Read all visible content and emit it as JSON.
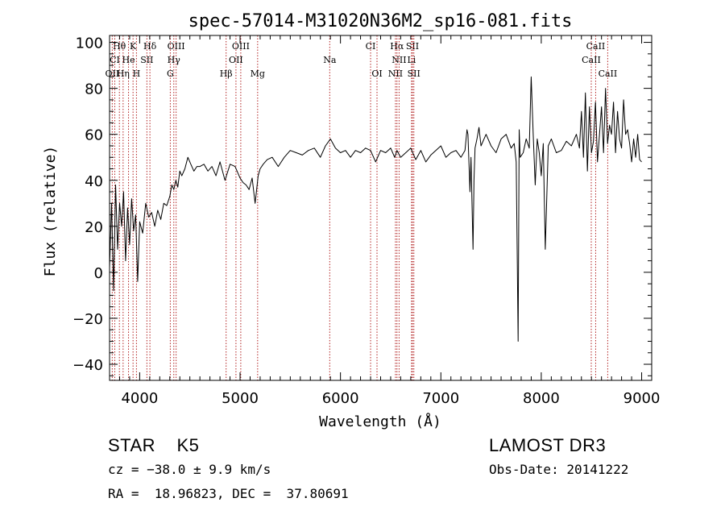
{
  "chart_data": {
    "type": "line",
    "title": "spec-57014-M31020N36M2_sp16-081.fits",
    "xlabel": "Wavelength (Å)",
    "ylabel": "Flux (relative)",
    "xlim": [
      3700,
      9100
    ],
    "ylim": [
      -47,
      103
    ],
    "xticks": [
      4000,
      5000,
      6000,
      7000,
      8000,
      9000
    ],
    "yticks": [
      -40,
      -20,
      0,
      20,
      40,
      60,
      80,
      100
    ],
    "ytick_labels": [
      "−40",
      "−20",
      "0",
      "20",
      "40",
      "60",
      "80",
      "100"
    ],
    "series": [
      {
        "name": "spectrum",
        "x": [
          3700,
          3720,
          3740,
          3760,
          3780,
          3800,
          3820,
          3840,
          3860,
          3880,
          3900,
          3920,
          3940,
          3960,
          3980,
          4000,
          4030,
          4060,
          4090,
          4120,
          4150,
          4180,
          4210,
          4240,
          4270,
          4300,
          4320,
          4340,
          4360,
          4380,
          4400,
          4420,
          4450,
          4480,
          4510,
          4540,
          4570,
          4600,
          4640,
          4680,
          4720,
          4760,
          4800,
          4850,
          4900,
          4950,
          5000,
          5030,
          5060,
          5090,
          5120,
          5150,
          5180,
          5200,
          5230,
          5270,
          5320,
          5380,
          5440,
          5500,
          5560,
          5620,
          5680,
          5740,
          5800,
          5850,
          5900,
          5950,
          6000,
          6050,
          6100,
          6150,
          6200,
          6250,
          6300,
          6350,
          6400,
          6450,
          6500,
          6540,
          6563,
          6600,
          6650,
          6700,
          6750,
          6800,
          6850,
          6900,
          6950,
          7000,
          7050,
          7100,
          7150,
          7200,
          7240,
          7260,
          7270,
          7290,
          7300,
          7320,
          7330,
          7340,
          7360,
          7380,
          7400,
          7450,
          7500,
          7550,
          7600,
          7650,
          7700,
          7730,
          7750,
          7760,
          7770,
          7780,
          7790,
          7820,
          7850,
          7880,
          7900,
          7920,
          7940,
          7960,
          7980,
          8000,
          8020,
          8040,
          8070,
          8100,
          8150,
          8200,
          8250,
          8300,
          8350,
          8380,
          8400,
          8420,
          8440,
          8460,
          8480,
          8500,
          8520,
          8540,
          8560,
          8580,
          8600,
          8620,
          8640,
          8660,
          8680,
          8700,
          8720,
          8740,
          8760,
          8780,
          8800,
          8820,
          8840,
          8860,
          8880,
          8900,
          8920,
          8940,
          8960,
          8980,
          9000
        ],
        "y": [
          2,
          30,
          -8,
          38,
          10,
          30,
          20,
          35,
          5,
          28,
          12,
          32,
          18,
          25,
          -4,
          22,
          17,
          30,
          24,
          26,
          20,
          27,
          23,
          30,
          29,
          33,
          38,
          36,
          40,
          37,
          44,
          42,
          45,
          50,
          47,
          44,
          46,
          46,
          47,
          44,
          46,
          42,
          48,
          40,
          47,
          46,
          41,
          39,
          38,
          36,
          41,
          30,
          42,
          45,
          47,
          49,
          50,
          46,
          50,
          53,
          52,
          51,
          53,
          54,
          50,
          55,
          58,
          54,
          52,
          53,
          50,
          53,
          52,
          54,
          53,
          48,
          53,
          52,
          54,
          50,
          53,
          50,
          52,
          54,
          49,
          53,
          48,
          51,
          53,
          55,
          50,
          52,
          53,
          50,
          53,
          62,
          60,
          35,
          50,
          10,
          40,
          54,
          58,
          63,
          55,
          60,
          55,
          52,
          58,
          60,
          54,
          56,
          48,
          10,
          -30,
          62,
          50,
          52,
          58,
          54,
          85,
          60,
          38,
          58,
          52,
          42,
          56,
          10,
          55,
          58,
          52,
          53,
          57,
          55,
          60,
          54,
          70,
          50,
          78,
          44,
          72,
          52,
          57,
          74,
          48,
          60,
          72,
          52,
          80,
          56,
          64,
          60,
          74,
          52,
          70,
          58,
          54,
          75,
          60,
          62,
          56,
          48,
          58,
          50,
          60,
          49,
          48
        ]
      }
    ],
    "line_markers": [
      {
        "label": "Hθ",
        "x": 3798,
        "row": 1
      },
      {
        "label": "K",
        "x": 3934,
        "row": 1
      },
      {
        "label": "Hδ",
        "x": 4102,
        "row": 1
      },
      {
        "label": "OIII",
        "x": 4363,
        "row": 1
      },
      {
        "label": "OIII",
        "x": 5007,
        "row": 1
      },
      {
        "label": "CI",
        "x": 6300,
        "row": 1
      },
      {
        "label": "Hα",
        "x": 6563,
        "row": 1
      },
      {
        "label": "SII",
        "x": 6717,
        "row": 1
      },
      {
        "label": "CaII",
        "x": 8542,
        "row": 1
      },
      {
        "label": "CI",
        "x": 3752,
        "row": 2
      },
      {
        "label": "He",
        "x": 3889,
        "row": 2
      },
      {
        "label": "SII",
        "x": 4072,
        "row": 2
      },
      {
        "label": "Hγ",
        "x": 4340,
        "row": 2
      },
      {
        "label": "OII",
        "x": 4959,
        "row": 2
      },
      {
        "label": "Na",
        "x": 5893,
        "row": 2
      },
      {
        "label": "NII",
        "x": 6584,
        "row": 2
      },
      {
        "label": "Li",
        "x": 6708,
        "row": 2
      },
      {
        "label": "CaII",
        "x": 8498,
        "row": 2
      },
      {
        "label": "OII",
        "x": 3727,
        "row": 3
      },
      {
        "label": "Hη",
        "x": 3835,
        "row": 3
      },
      {
        "label": "H",
        "x": 3968,
        "row": 3
      },
      {
        "label": "G",
        "x": 4305,
        "row": 3
      },
      {
        "label": "Hβ",
        "x": 4861,
        "row": 3
      },
      {
        "label": "Mg",
        "x": 5175,
        "row": 3
      },
      {
        "label": "OI",
        "x": 6364,
        "row": 3
      },
      {
        "label": "NII",
        "x": 6548,
        "row": 3
      },
      {
        "label": "SII",
        "x": 6731,
        "row": 3
      },
      {
        "label": "CaII",
        "x": 8662,
        "row": 3
      }
    ],
    "marker_color": "#b22222",
    "line_color": "#000000"
  },
  "info": {
    "class_line": "STAR    K5",
    "cz_line": "cz = −38.0 ± 9.9 km/s",
    "coords_line": "RA =  18.96823, DEC =  37.80691",
    "survey": "LAMOST DR3",
    "obs_date": "Obs-Date: 20141222"
  }
}
